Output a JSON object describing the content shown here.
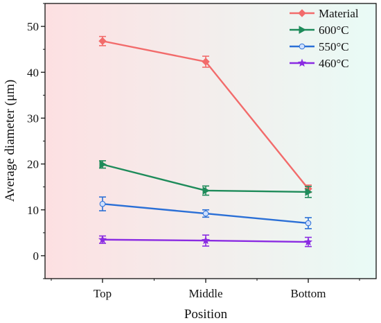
{
  "chart_data": {
    "type": "line",
    "title": "",
    "xlabel": "Position",
    "ylabel": "Average diameter (μm)",
    "categories": [
      "Top",
      "Middle",
      "Bottom"
    ],
    "ylim": [
      -5,
      55
    ],
    "yticks": [
      0,
      10,
      20,
      30,
      40,
      50
    ],
    "grid": false,
    "legend": "top-right",
    "background_gradient": [
      "#fde0e2",
      "#e9fbf6"
    ],
    "series": [
      {
        "name": "Material",
        "values": [
          46.8,
          42.3,
          14.6
        ],
        "errors": [
          1.0,
          1.2,
          0.8
        ],
        "color": "#f26b6b",
        "marker": "diamond"
      },
      {
        "name": "600°C",
        "values": [
          19.9,
          14.2,
          13.9
        ],
        "errors": [
          0.8,
          1.0,
          1.2
        ],
        "color": "#1e8b5a",
        "marker": "triangle-right"
      },
      {
        "name": "550°C",
        "values": [
          11.3,
          9.2,
          7.1
        ],
        "errors": [
          1.5,
          0.8,
          1.2
        ],
        "color": "#2a6fd6",
        "marker": "circle"
      },
      {
        "name": "460°C",
        "values": [
          3.5,
          3.3,
          3.0
        ],
        "errors": [
          0.8,
          1.2,
          1.0
        ],
        "color": "#8a2be2",
        "marker": "star"
      }
    ]
  }
}
